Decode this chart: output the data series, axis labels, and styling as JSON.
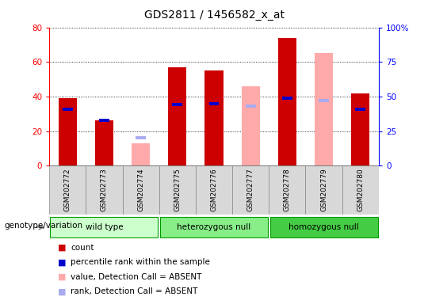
{
  "title": "GDS2811 / 1456582_x_at",
  "samples": [
    "GSM202772",
    "GSM202773",
    "GSM202774",
    "GSM202775",
    "GSM202776",
    "GSM202777",
    "GSM202778",
    "GSM202779",
    "GSM202780"
  ],
  "groups": [
    {
      "label": "wild type",
      "indices": [
        0,
        1,
        2
      ],
      "color": "#ccffcc",
      "border": "#009900"
    },
    {
      "label": "heterozygous null",
      "indices": [
        3,
        4,
        5
      ],
      "color": "#88ee88",
      "border": "#009900"
    },
    {
      "label": "homozygous null",
      "indices": [
        6,
        7,
        8
      ],
      "color": "#44cc44",
      "border": "#009900"
    }
  ],
  "count": [
    39,
    26,
    null,
    57,
    55,
    null,
    74,
    null,
    42
  ],
  "percentile_rank": [
    41,
    33,
    null,
    44,
    45,
    null,
    49,
    null,
    41
  ],
  "value_absent": [
    null,
    null,
    13,
    null,
    null,
    46,
    null,
    65,
    null
  ],
  "rank_absent": [
    null,
    null,
    20,
    null,
    null,
    43,
    null,
    47,
    null
  ],
  "left_ylim": [
    0,
    80
  ],
  "right_ylim": [
    0,
    100
  ],
  "left_yticks": [
    0,
    20,
    40,
    60,
    80
  ],
  "right_yticks": [
    0,
    25,
    50,
    75,
    100
  ],
  "right_yticklabels": [
    "0",
    "25",
    "50",
    "75",
    "100%"
  ],
  "count_color": "#cc0000",
  "rank_color": "#0000cc",
  "value_absent_color": "#ffaaaa",
  "rank_absent_color": "#aaaaee",
  "grid_color": "black",
  "label_bg": "#d8d8d8"
}
